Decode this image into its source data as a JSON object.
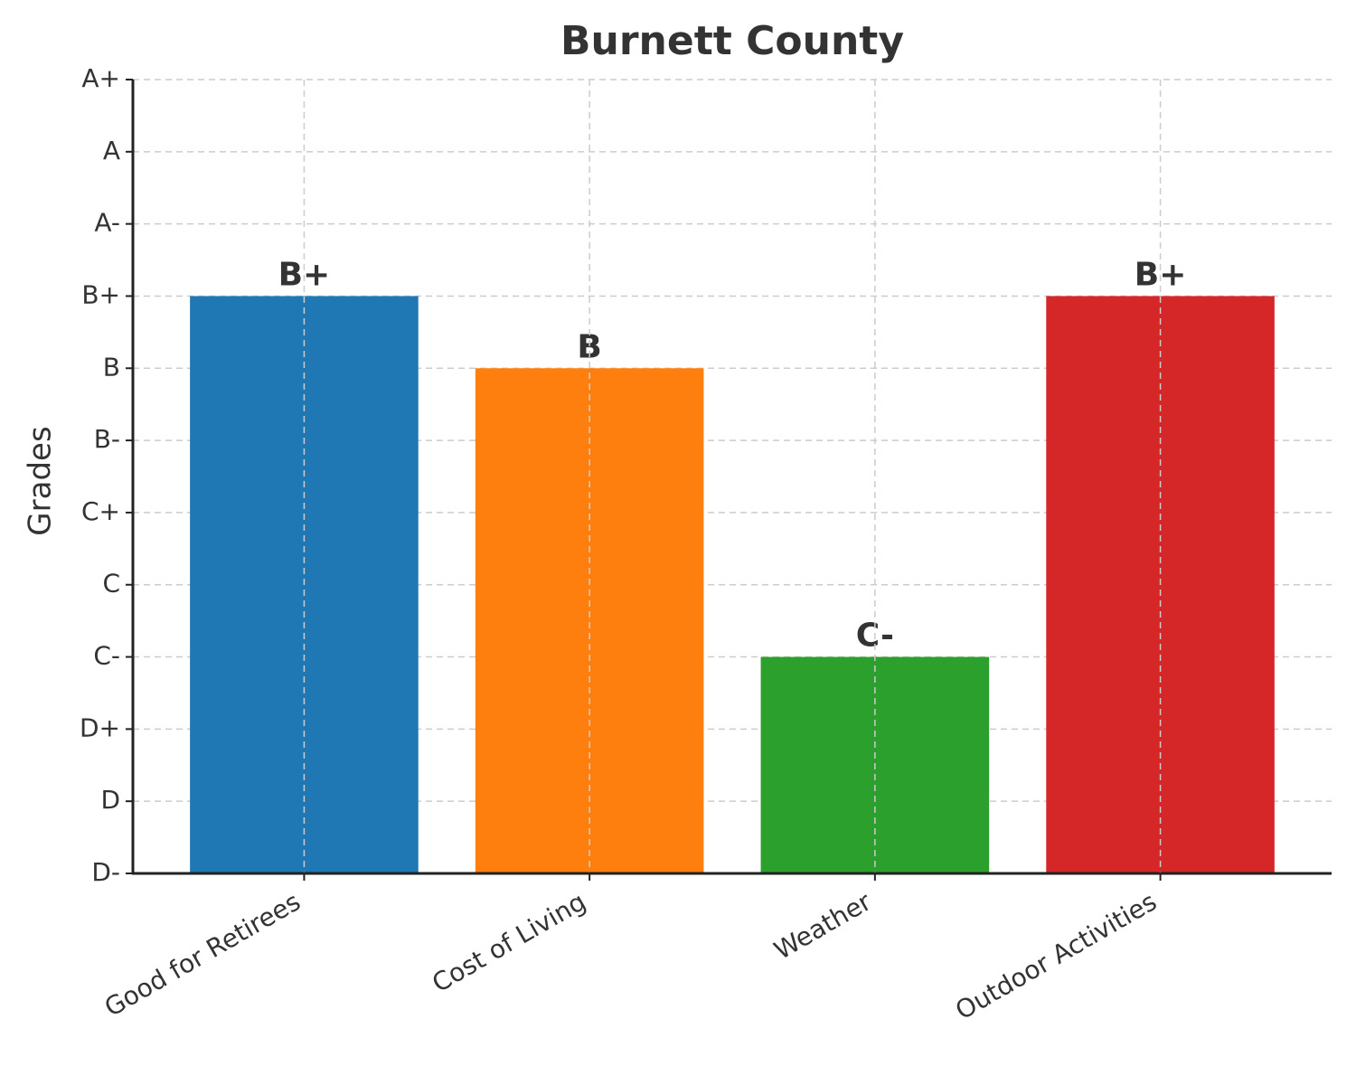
{
  "chart_data": {
    "type": "bar",
    "title": "Burnett County",
    "y_label": "Grades",
    "categories": [
      "Good for Retirees",
      "Cost of Living",
      "Weather",
      "Outdoor Activities"
    ],
    "values": [
      8,
      7,
      3,
      8
    ],
    "value_labels": [
      "B+",
      "B",
      "C-",
      "B+"
    ],
    "colors": [
      "#1f77b4",
      "#ff7f0e",
      "#2ca02c",
      "#d62728"
    ],
    "ylim": [
      0,
      11
    ],
    "yticks": [
      {
        "value": 0,
        "label": "D-"
      },
      {
        "value": 1,
        "label": "D"
      },
      {
        "value": 2,
        "label": "D+"
      },
      {
        "value": 3,
        "label": "C-"
      },
      {
        "value": 4,
        "label": "C"
      },
      {
        "value": 5,
        "label": "C+"
      },
      {
        "value": 6,
        "label": "B-"
      },
      {
        "value": 7,
        "label": "B"
      },
      {
        "value": 8,
        "label": "B+"
      },
      {
        "value": 9,
        "label": "A-"
      },
      {
        "value": 10,
        "label": "A"
      },
      {
        "value": 11,
        "label": "A+"
      }
    ],
    "grid": true
  }
}
